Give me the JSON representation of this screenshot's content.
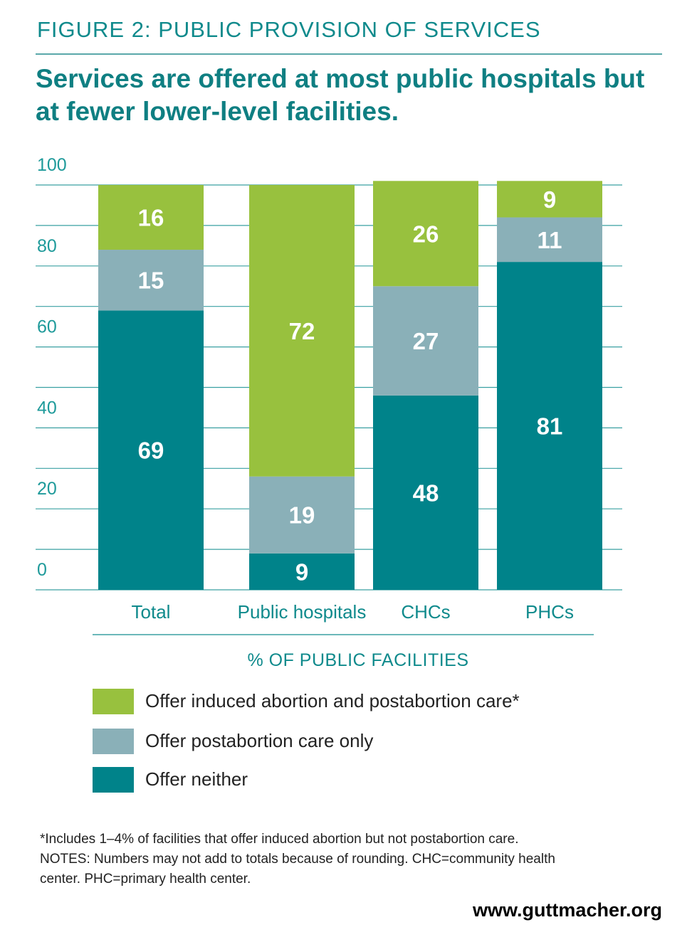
{
  "figure_label": "FIGURE 2: PUBLIC PROVISION OF SERVICES",
  "headline": "Services are offered at most public hospitals but at fewer lower-level facilities.",
  "chart_data": {
    "type": "bar",
    "stacked": true,
    "categories": [
      "Total",
      "Public hospitals",
      "CHCs",
      "PHCs"
    ],
    "series": [
      {
        "name": "Offer neither",
        "values": [
          69,
          9,
          48,
          81
        ],
        "color": "#00838a"
      },
      {
        "name": "Offer postabortion care only",
        "values": [
          15,
          19,
          27,
          11
        ],
        "color": "#8ab0b8"
      },
      {
        "name": "Offer induced abortion and postabortion care*",
        "values": [
          16,
          72,
          26,
          9
        ],
        "color": "#98c13e"
      }
    ],
    "y_ticks": [
      0,
      20,
      40,
      60,
      80,
      100
    ],
    "ylim": [
      0,
      100
    ],
    "xlabel": "% OF PUBLIC FACILITIES",
    "grid": true
  },
  "legend": [
    {
      "label": "Offer induced abortion and postabortion care*",
      "color": "#98c13e"
    },
    {
      "label": "Offer postabortion care only",
      "color": "#8ab0b8"
    },
    {
      "label": "Offer neither",
      "color": "#00838a"
    }
  ],
  "notes": {
    "footnote": "*Includes 1–4% of facilities that offer induced abortion but not postabortion care.",
    "notes_line1": "NOTES: Numbers may not add to totals because of rounding. CHC=community health",
    "notes_line2": "center. PHC=primary health center."
  },
  "source_url": "www.guttmacher.org",
  "colors": {
    "teal_text": "#0f8a8c",
    "tick_text": "#1e9a9a",
    "grid": "#3aa0a2"
  }
}
